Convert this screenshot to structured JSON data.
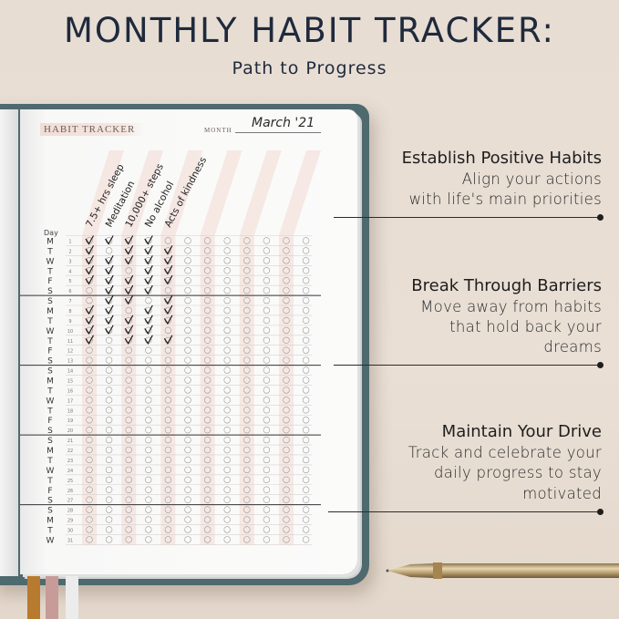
{
  "header": {
    "title": "MONTHLY HABIT TRACKER:",
    "subtitle": "Path to Progress"
  },
  "tracker": {
    "heading": "HABIT TRACKER",
    "month_label": "MONTH",
    "month_value": "March '21",
    "day_label": "Day",
    "habits": [
      "7.5+ hrs sleep",
      "Meditation",
      "10,000+ steps",
      "No alcohol",
      "Acts of kindness"
    ],
    "column_count": 12,
    "weekdays": [
      "M",
      "T",
      "W",
      "T",
      "F",
      "S",
      "S",
      "M",
      "T",
      "W",
      "T",
      "F",
      "S",
      "S",
      "M",
      "T",
      "W",
      "T",
      "F",
      "S",
      "S",
      "M",
      "T",
      "W",
      "T",
      "F",
      "S",
      "S",
      "M",
      "T",
      "W"
    ],
    "checks": [
      [
        1,
        1,
        1,
        1,
        0
      ],
      [
        1,
        0,
        1,
        1,
        1
      ],
      [
        1,
        1,
        1,
        1,
        1
      ],
      [
        1,
        1,
        0,
        1,
        1
      ],
      [
        1,
        1,
        1,
        1,
        1
      ],
      [
        0,
        1,
        1,
        1,
        0
      ],
      [
        0,
        1,
        1,
        0,
        1
      ],
      [
        1,
        1,
        0,
        1,
        1
      ],
      [
        1,
        1,
        1,
        1,
        1
      ],
      [
        1,
        1,
        1,
        1,
        0
      ],
      [
        1,
        0,
        1,
        1,
        1
      ]
    ],
    "week_dividers_after_days": [
      6,
      13,
      20,
      27
    ],
    "accent_pink": "#f3d9d2"
  },
  "features": [
    {
      "title": "Establish Positive Habits",
      "lines": [
        "Align your actions",
        "with life's main priorities"
      ]
    },
    {
      "title": "Break Through Barriers",
      "lines": [
        "Move away from habits",
        "that hold back your",
        "dreams"
      ]
    },
    {
      "title": "Maintain Your Drive",
      "lines": [
        "Track and celebrate your",
        "daily progress to stay",
        "motivated"
      ]
    }
  ],
  "colors": {
    "background": "#e8ded4",
    "cover": "#4e6a6f",
    "title": "#1f2a3c",
    "ribbons": [
      "#b87a2e",
      "#c79b97",
      "#eeeeee"
    ],
    "pen": "#c2a878"
  }
}
